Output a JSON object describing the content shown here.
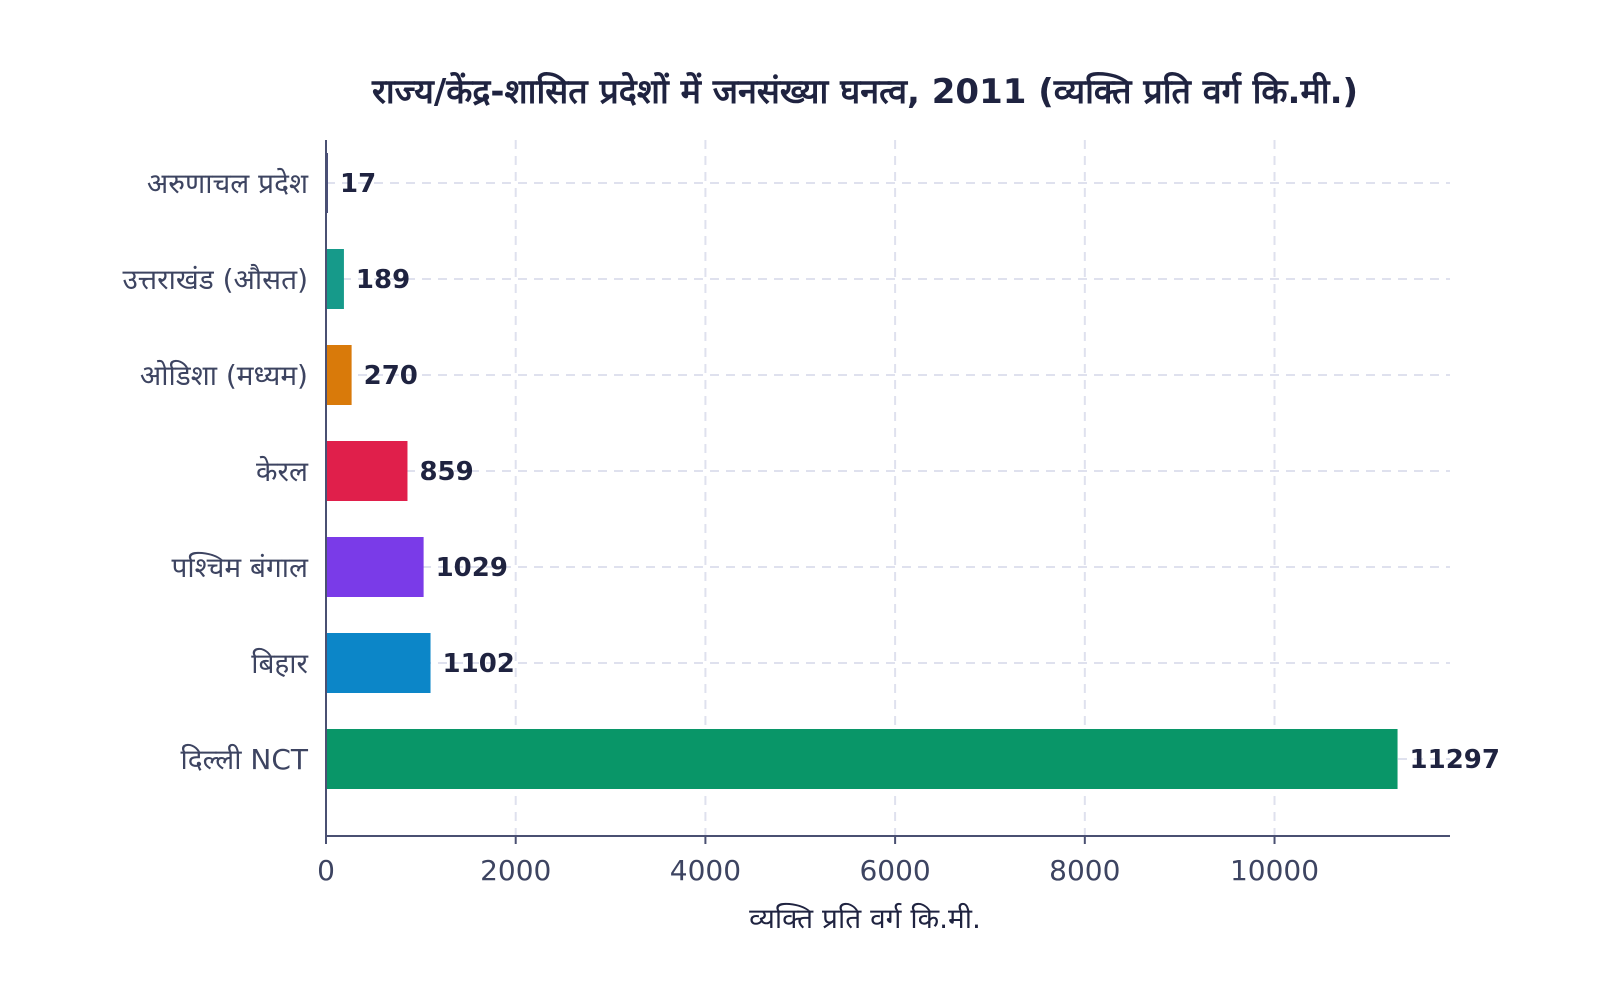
{
  "chart_data": {
    "type": "bar",
    "orientation": "horizontal",
    "title": "राज्य/केंद्र-शासित प्रदेशों में जनसंख्या घनत्व, 2011 (व्यक्ति प्रति वर्ग कि.मी.)",
    "xlabel": "व्यक्ति प्रति वर्ग कि.मी.",
    "ylabel": "",
    "xlim": [
      0,
      11850
    ],
    "xticks": [
      "0",
      "2000",
      "4000",
      "6000",
      "8000",
      "10000"
    ],
    "grid": true,
    "categories": [
      "अरुणाचल प्रदेश",
      "उत्तराखंड (औसत)",
      "ओडिशा (मध्यम)",
      "केरल",
      "पश्चिम बंगाल",
      "बिहार",
      "दिल्ली NCT"
    ],
    "values": [
      17,
      189,
      270,
      859,
      1029,
      1102,
      11297
    ],
    "value_labels": [
      "17",
      "189",
      "270",
      "859",
      "1029",
      "1102",
      "11297"
    ],
    "colors": [
      "#4a4f7a",
      "#169a8a",
      "#d97a0a",
      "#e01f4b",
      "#7a3be8",
      "#0c86c8",
      "#099668"
    ]
  }
}
